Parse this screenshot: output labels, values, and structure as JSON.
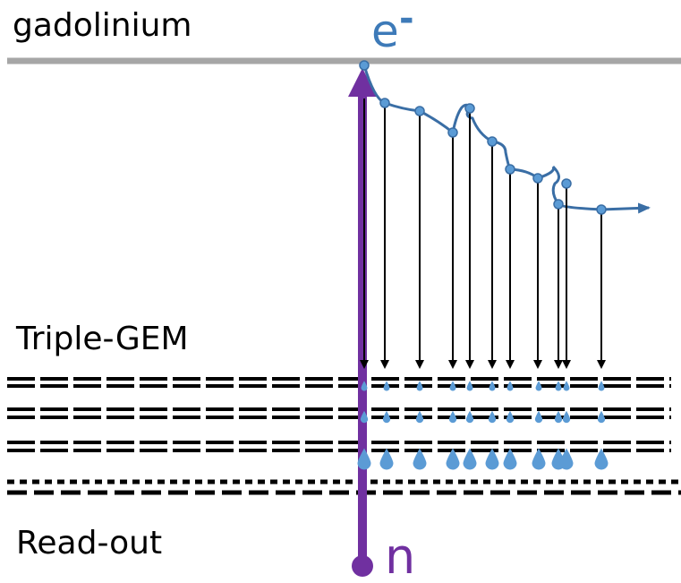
{
  "labels": {
    "top_layer": "gadolinium",
    "particle_out": "e",
    "particle_out_charge": "-",
    "detector": "Triple-GEM",
    "readout": "Read-out",
    "particle_in": "n"
  }
}
